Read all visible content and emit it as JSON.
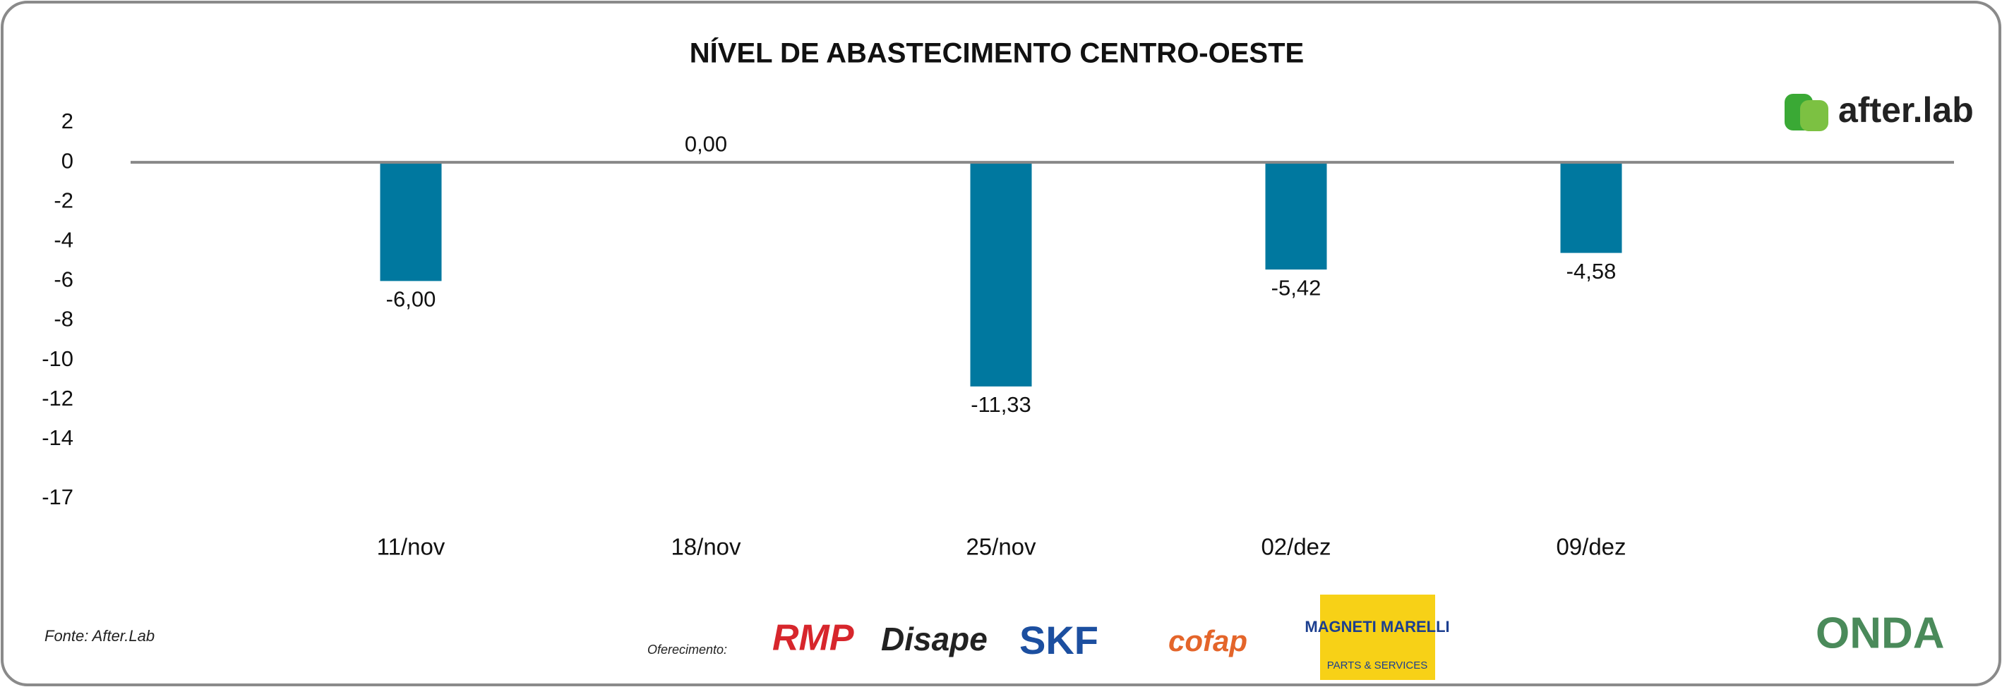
{
  "chart_data": {
    "type": "bar",
    "title": "NÍVEL DE ABASTECIMENTO CENTRO-OESTE",
    "categories": [
      "11/nov",
      "18/nov",
      "25/nov",
      "02/dez",
      "09/dez"
    ],
    "values": [
      -6.0,
      0.0,
      -11.33,
      -5.42,
      -4.58
    ],
    "value_labels": [
      "-6,00",
      "0,00",
      "-11,33",
      "-5,42",
      "-4,58"
    ],
    "color": "#00789f",
    "ylim": [
      -19,
      3
    ],
    "yticks": [
      2,
      0,
      -2,
      -4,
      -6,
      -8,
      -10,
      -12,
      -14,
      -17
    ]
  },
  "brand": "after.lab",
  "source": "Fonte: After.Lab",
  "sponsor_label": "Oferecimento:",
  "sponsors": [
    "RMP",
    "Disape",
    "SKF",
    "cofap",
    "MAGNETI MARELLI",
    "PARTS & SERVICES"
  ],
  "partner": "ONDA"
}
